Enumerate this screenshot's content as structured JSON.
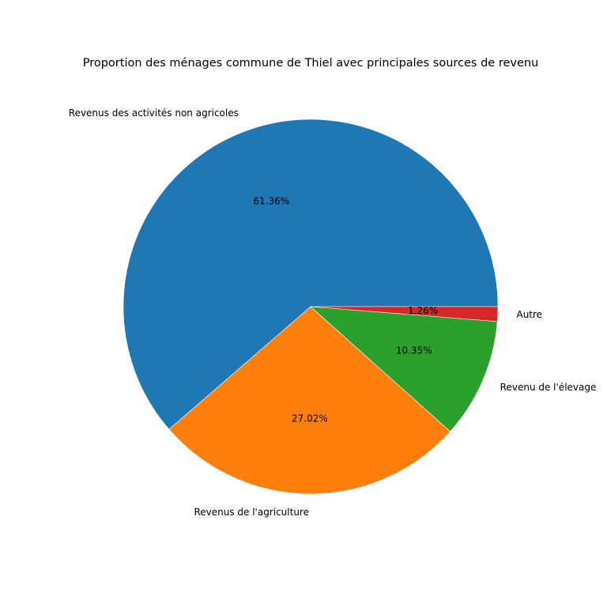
{
  "chart_data": {
    "type": "pie",
    "title": "Proportion des ménages commune de Thiel  avec principales sources de revenu",
    "categories": [
      "Revenus des activités non agricoles",
      "Revenus de l'agriculture",
      "Revenu de l'élevage",
      "Autre"
    ],
    "values": [
      61.36,
      27.02,
      10.35,
      1.26
    ],
    "value_labels": [
      "61.36%",
      "27.02%",
      "10.35%",
      "1.26%"
    ],
    "colors": [
      "#1f77b4",
      "#ff7f0e",
      "#2ca02c",
      "#d62728"
    ],
    "start_angle": "3 o'clock",
    "direction": "counterclockwise",
    "legend": "none"
  }
}
